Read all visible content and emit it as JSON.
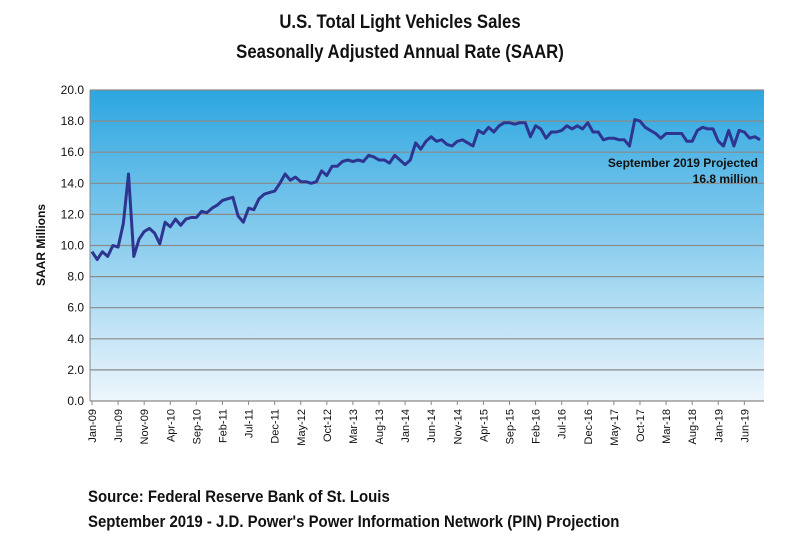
{
  "chart_data": {
    "type": "line",
    "title": "U.S. Total Light Vehicles Sales",
    "subtitle": "Seasonally Adjusted Annual Rate (SAAR)",
    "ylabel": "SAAR Millions",
    "xlabel": "",
    "ylim": [
      0,
      20
    ],
    "yticks": [
      "0.0",
      "2.0",
      "4.0",
      "6.0",
      "8.0",
      "10.0",
      "12.0",
      "14.0",
      "16.0",
      "18.0",
      "20.0"
    ],
    "grid": true,
    "xtick_labels": [
      "Jan-09",
      "Jun-09",
      "Nov-09",
      "Apr-10",
      "Sep-10",
      "Feb-11",
      "Jul-11",
      "Dec-11",
      "May-12",
      "Oct-12",
      "Mar-13",
      "Aug-13",
      "Jan-14",
      "Jun-14",
      "Nov-14",
      "Apr-15",
      "Sep-15",
      "Feb-16",
      "Jul-16",
      "Dec-16",
      "May-17",
      "Oct-17",
      "Mar-18",
      "Aug-18",
      "Jan-19",
      "Jun-19"
    ],
    "x_start": "Jan-09",
    "x_end": "Sep-19",
    "values": [
      9.6,
      9.1,
      9.6,
      9.3,
      10.0,
      9.9,
      11.4,
      14.6,
      9.3,
      10.4,
      10.9,
      11.1,
      10.8,
      10.1,
      11.5,
      11.2,
      11.7,
      11.3,
      11.7,
      11.8,
      11.8,
      12.2,
      12.1,
      12.4,
      12.6,
      12.9,
      13.0,
      13.1,
      11.9,
      11.5,
      12.4,
      12.3,
      13.0,
      13.3,
      13.4,
      13.5,
      14.0,
      14.6,
      14.2,
      14.4,
      14.1,
      14.1,
      14.0,
      14.1,
      14.8,
      14.5,
      15.1,
      15.1,
      15.4,
      15.5,
      15.4,
      15.5,
      15.4,
      15.8,
      15.7,
      15.5,
      15.5,
      15.3,
      15.8,
      15.5,
      15.2,
      15.5,
      16.6,
      16.2,
      16.7,
      17.0,
      16.7,
      16.8,
      16.5,
      16.4,
      16.7,
      16.8,
      16.6,
      16.4,
      17.4,
      17.2,
      17.6,
      17.3,
      17.7,
      17.9,
      17.9,
      17.8,
      17.9,
      17.9,
      17.0,
      17.7,
      17.5,
      16.9,
      17.3,
      17.3,
      17.4,
      17.7,
      17.5,
      17.7,
      17.5,
      17.9,
      17.3,
      17.3,
      16.8,
      16.9,
      16.9,
      16.8,
      16.8,
      16.4,
      18.1,
      18.0,
      17.6,
      17.4,
      17.2,
      16.9,
      17.2,
      17.2,
      17.2,
      17.2,
      16.7,
      16.7,
      17.4,
      17.6,
      17.5,
      17.5,
      16.7,
      16.4,
      17.4,
      16.4,
      17.4,
      17.3,
      16.9,
      17.0,
      16.8
    ],
    "annotation": [
      "September 2019  Projected",
      "16.8 million"
    ],
    "line_color": "#2e3590",
    "background_top": "#2ca6e0",
    "background_bottom": "#eef6fc"
  },
  "source": {
    "line1": "Source: Federal Reserve Bank of St. Louis",
    "line2": "September 2019 - J.D. Power's Power Information Network (PIN) Projection"
  }
}
